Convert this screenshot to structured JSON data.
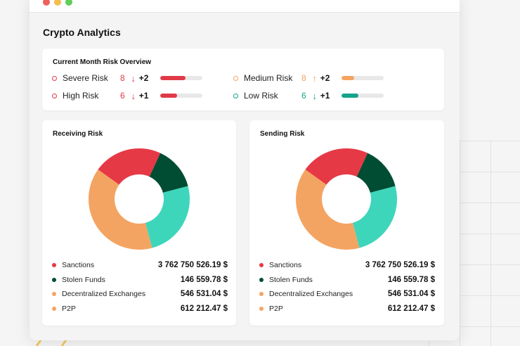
{
  "app": {
    "title": "Crypto Analytics"
  },
  "overview": {
    "title": "Current Month Risk Overview",
    "items": [
      {
        "label": "Severe Risk",
        "count": "8",
        "direction": "down",
        "delta": "+2",
        "level": 0.6,
        "color": "#e03a48"
      },
      {
        "label": "High Risk",
        "count": "6",
        "direction": "down",
        "delta": "+1",
        "level": 0.4,
        "color": "#e03a48"
      },
      {
        "label": "Medium Risk",
        "count": "8",
        "direction": "up",
        "delta": "+2",
        "level": 0.3,
        "color": "#f4a460"
      },
      {
        "label": "Low Risk",
        "count": "6",
        "direction": "down",
        "delta": "+1",
        "level": 0.4,
        "color": "#14a38b"
      }
    ]
  },
  "panels": [
    {
      "title": "Receiving Risk",
      "segments": [
        {
          "label": "Sanctions",
          "value": "3 762 750 526.19 $",
          "color": "#e63946"
        },
        {
          "label": "Stolen Funds",
          "value": "146 559.78 $",
          "color": "#004d33"
        },
        {
          "label": "Decentralized Exchanges",
          "value": "546 531.04 $",
          "color": "#f4a462"
        },
        {
          "label": "P2P",
          "value": "612 212.47 $",
          "color": "#f4a462"
        }
      ]
    },
    {
      "title": "Sending Risk",
      "segments": [
        {
          "label": "Sanctions",
          "value": "3 762 750 526.19 $",
          "color": "#e63946"
        },
        {
          "label": "Stolen Funds",
          "value": "146 559.78 $",
          "color": "#004d33"
        },
        {
          "label": "Decentralized Exchanges",
          "value": "546 531.04 $",
          "color": "#f4a462"
        },
        {
          "label": "P2P",
          "value": "612 212.47 $",
          "color": "#f4a462"
        }
      ]
    }
  ],
  "donut_slices": [
    {
      "color": "#e63946",
      "fraction": 0.22
    },
    {
      "color": "#004d33",
      "fraction": 0.14
    },
    {
      "color": "#3dd6bb",
      "fraction": 0.25
    },
    {
      "color": "#f4a462",
      "fraction": 0.39
    }
  ]
}
